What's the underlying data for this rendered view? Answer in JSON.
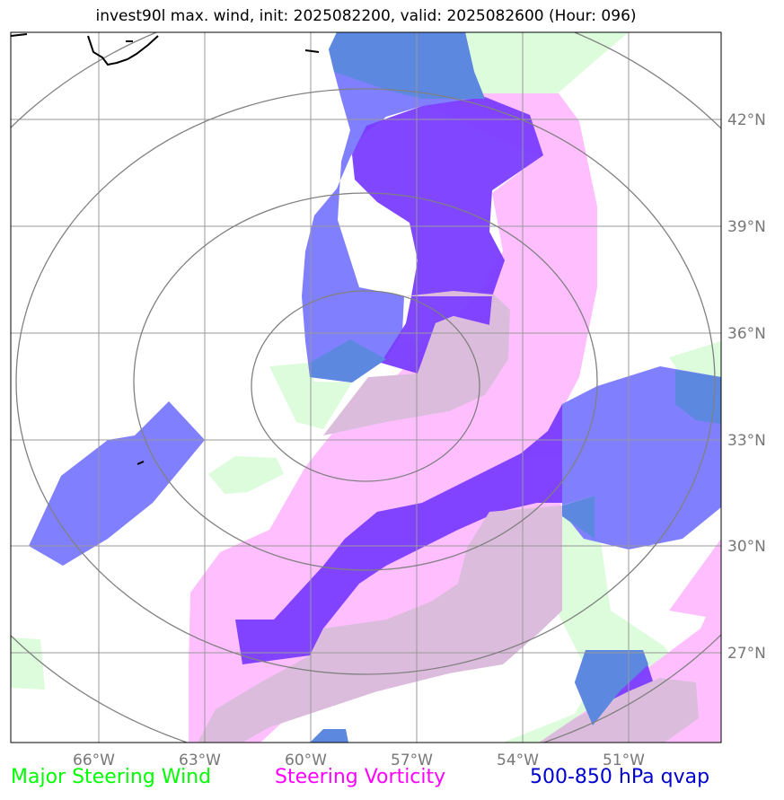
{
  "title": "invest90l max. wind, init: 2025082200, valid: 2025082600 (Hour: 096)",
  "map": {
    "projection": "orthographic (storm-centered)",
    "lon_ticks": [
      "66°W",
      "63°W",
      "60°W",
      "57°W",
      "54°W",
      "51°W"
    ],
    "lat_ticks": [
      "42°N",
      "39°N",
      "36°N",
      "33°N",
      "30°N",
      "27°N"
    ],
    "range_rings": 4,
    "coastline": "black",
    "gridline_color": "#999999"
  },
  "layers": [
    {
      "name": "Major Steering Wind",
      "color": "#00ff00",
      "fill": "#dcfcdc"
    },
    {
      "name": "Steering Vorticity",
      "color": "#ff00ff",
      "fill": "#ffbfff"
    },
    {
      "name": "500-850 hPa qvap",
      "color": "#0000cc",
      "fill": "#8080ff"
    }
  ],
  "legend": {
    "wind": "Major Steering Wind",
    "vorticity": "Steering Vorticity",
    "qvap": "500-850 hPa qvap"
  }
}
